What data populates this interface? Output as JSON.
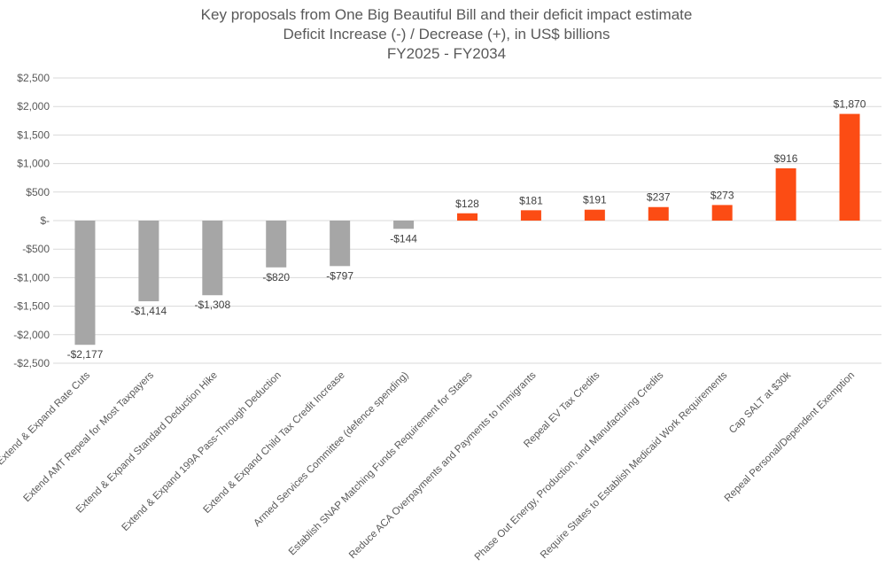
{
  "colors": {
    "negative": "#a6a6a6",
    "positive": "#fc4c14",
    "grid": "#d9d9d9",
    "text": "#595959"
  },
  "chart_data": {
    "type": "bar",
    "title": "Key proposals from One Big Beautiful Bill and their deficit impact estimate",
    "subtitle": "Deficit Increase (-) / Decrease (+), in US$ billions",
    "subtitle2": "FY2025 - FY2034",
    "xlabel": "",
    "ylabel": "",
    "ylim": [
      -2500,
      2500
    ],
    "grid": true,
    "yticks": [
      2500,
      2000,
      1500,
      1000,
      500,
      0,
      -500,
      -1000,
      -1500,
      -2000,
      -2500
    ],
    "ytick_labels": [
      "$2,500",
      "$2,000",
      "$1,500",
      "$1,000",
      "$500",
      "$-",
      "-$500",
      "-$1,000",
      "-$1,500",
      "-$2,000",
      "-$2,500"
    ],
    "categories": [
      "Extend & Expand Rate Cuts",
      "Extend AMT Repeal for Most Taxpayers",
      "Extend & Expand Standard Deduction Hike",
      "Extend & Expand 199A Pass-Through Deduction",
      "Extend & Expand Child Tax Credit Increase",
      "Armed Services Committee (defence spending)",
      "Establish SNAP Matching Funds Requirement for States",
      "Reduce ACA Overpayments and Payments to Immigrants",
      "Repeal EV Tax Credits",
      "Phase Out Energy, Production, and Manufacturing Credits",
      "Require States to Establish Medicaid Work Requirements",
      "Cap SALT at $30k",
      "Repeal Personal/Dependent Exemption"
    ],
    "values": [
      -2177,
      -1414,
      -1308,
      -820,
      -797,
      -144,
      128,
      181,
      191,
      237,
      273,
      916,
      1870
    ],
    "data_labels": [
      "-$2,177",
      "-$1,414",
      "-$1,308",
      "-$820",
      "-$797",
      "-$144",
      "$128",
      "$181",
      "$191",
      "$237",
      "$273",
      "$916",
      "$1,870"
    ]
  }
}
